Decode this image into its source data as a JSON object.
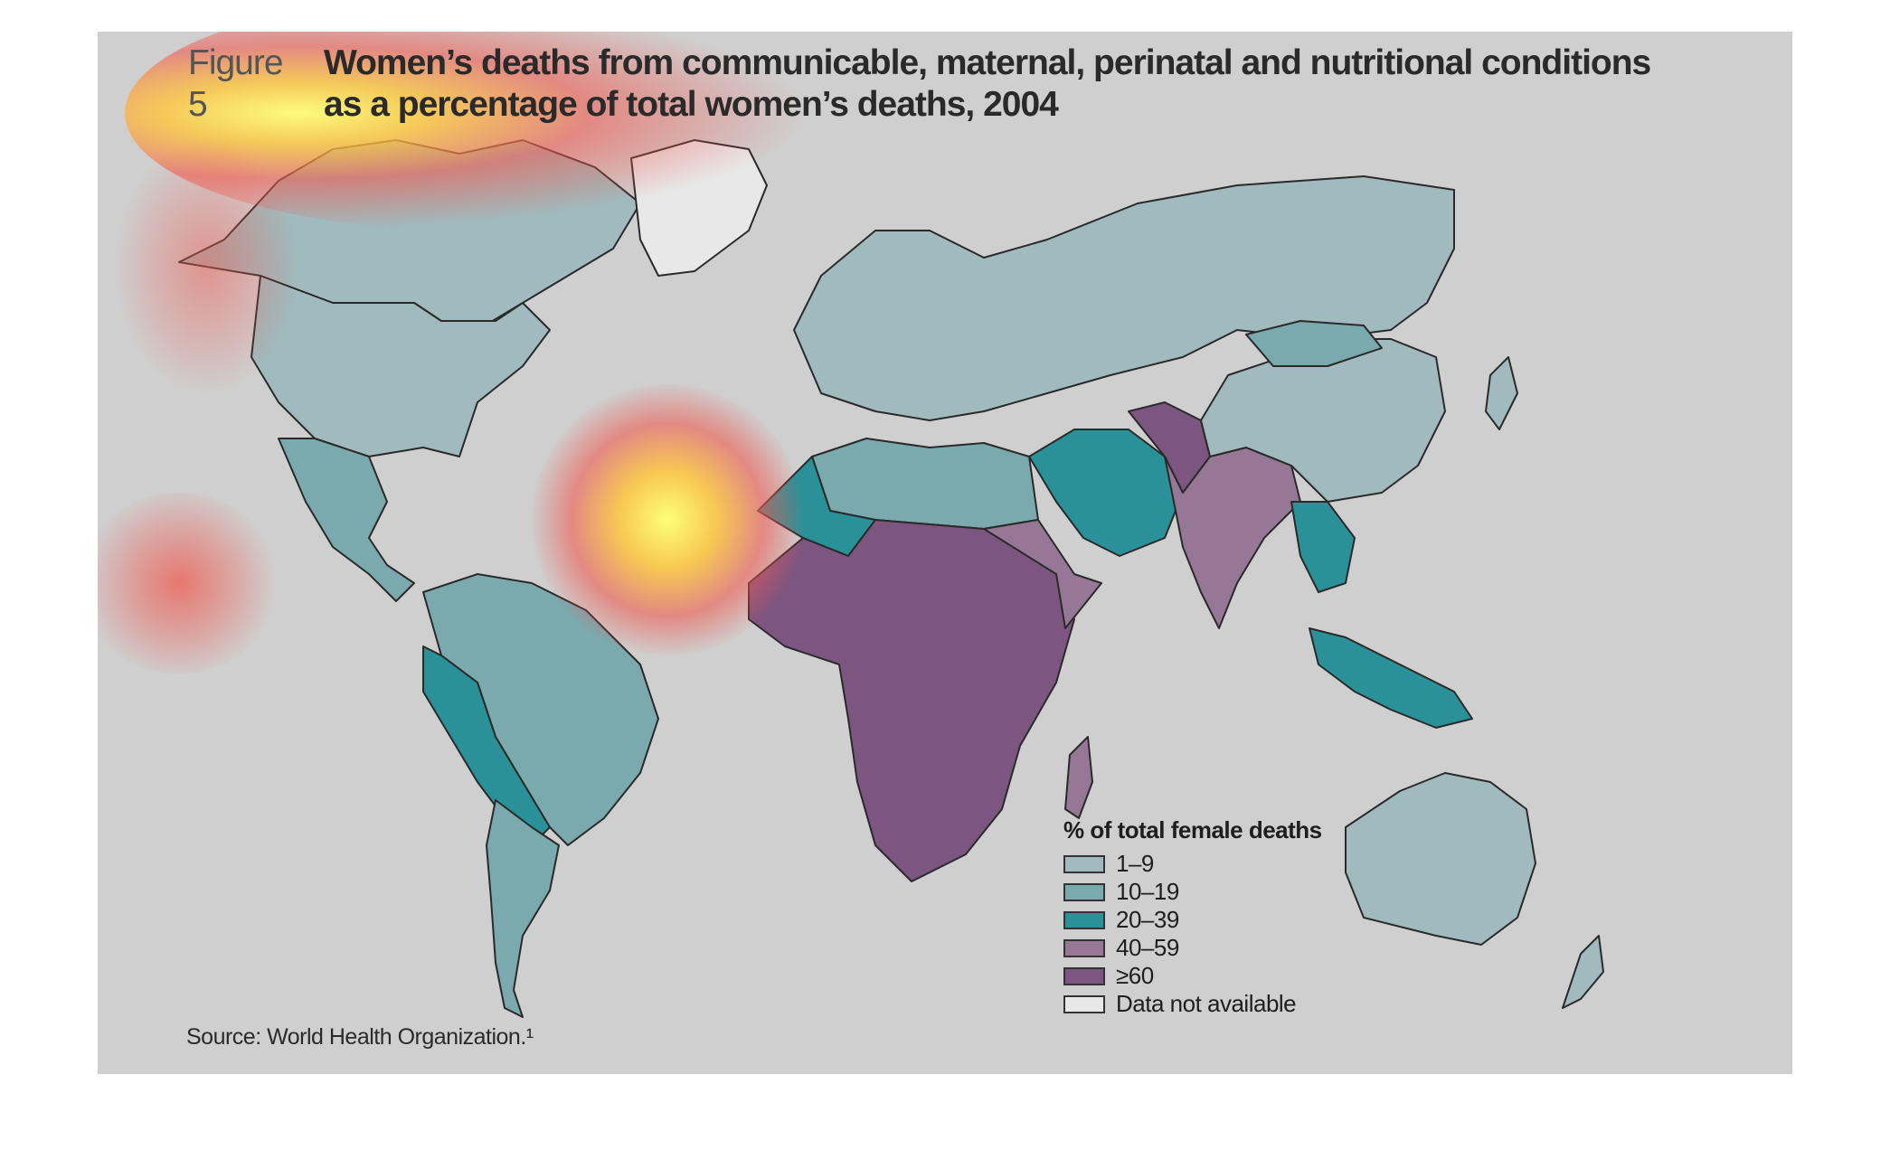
{
  "figure": {
    "number": "Figure 5",
    "title_line1": "Women’s deaths from communicable, maternal, perinatal and nutritional conditions",
    "title_line2": "as a percentage of total women’s deaths, 2004"
  },
  "source": "Source: World Health Organization.¹",
  "legend": {
    "title": "% of total female deaths",
    "items": [
      {
        "label": "1–9",
        "color": "#a0babd"
      },
      {
        "label": "10–19",
        "color": "#7aa9ae"
      },
      {
        "label": "20–39",
        "color": "#2a9199"
      },
      {
        "label": "40–59",
        "color": "#967896"
      },
      {
        "label": "≥60",
        "color": "#7c5580"
      },
      {
        "label": "Data not available",
        "color": "#e8e8e8"
      }
    ]
  },
  "regions": [
    {
      "name": "north-america-canada",
      "category": "1–9"
    },
    {
      "name": "north-america-usa",
      "category": "1–9"
    },
    {
      "name": "mexico-central-america",
      "category": "10–19"
    },
    {
      "name": "south-america-north",
      "category": "10–19"
    },
    {
      "name": "andes",
      "category": "20–39"
    },
    {
      "name": "southern-cone",
      "category": "10–19"
    },
    {
      "name": "europe-russia",
      "category": "1–9"
    },
    {
      "name": "north-africa",
      "category": "10–19"
    },
    {
      "name": "west-africa-coast",
      "category": "20–39"
    },
    {
      "name": "sub-saharan-africa",
      "category": "≥60"
    },
    {
      "name": "horn-of-africa",
      "category": "40–59"
    },
    {
      "name": "middle-east",
      "category": "20–39"
    },
    {
      "name": "south-asia",
      "category": "40–59"
    },
    {
      "name": "pakistan-afghanistan",
      "category": "≥60"
    },
    {
      "name": "china",
      "category": "1–9"
    },
    {
      "name": "mongolia",
      "category": "10–19"
    },
    {
      "name": "southeast-asia",
      "category": "20–39"
    },
    {
      "name": "indonesia",
      "category": "20–39"
    },
    {
      "name": "australia",
      "category": "1–9"
    },
    {
      "name": "madagascar",
      "category": "40–59"
    }
  ],
  "heatmap_overlay": "attention-heatmap"
}
